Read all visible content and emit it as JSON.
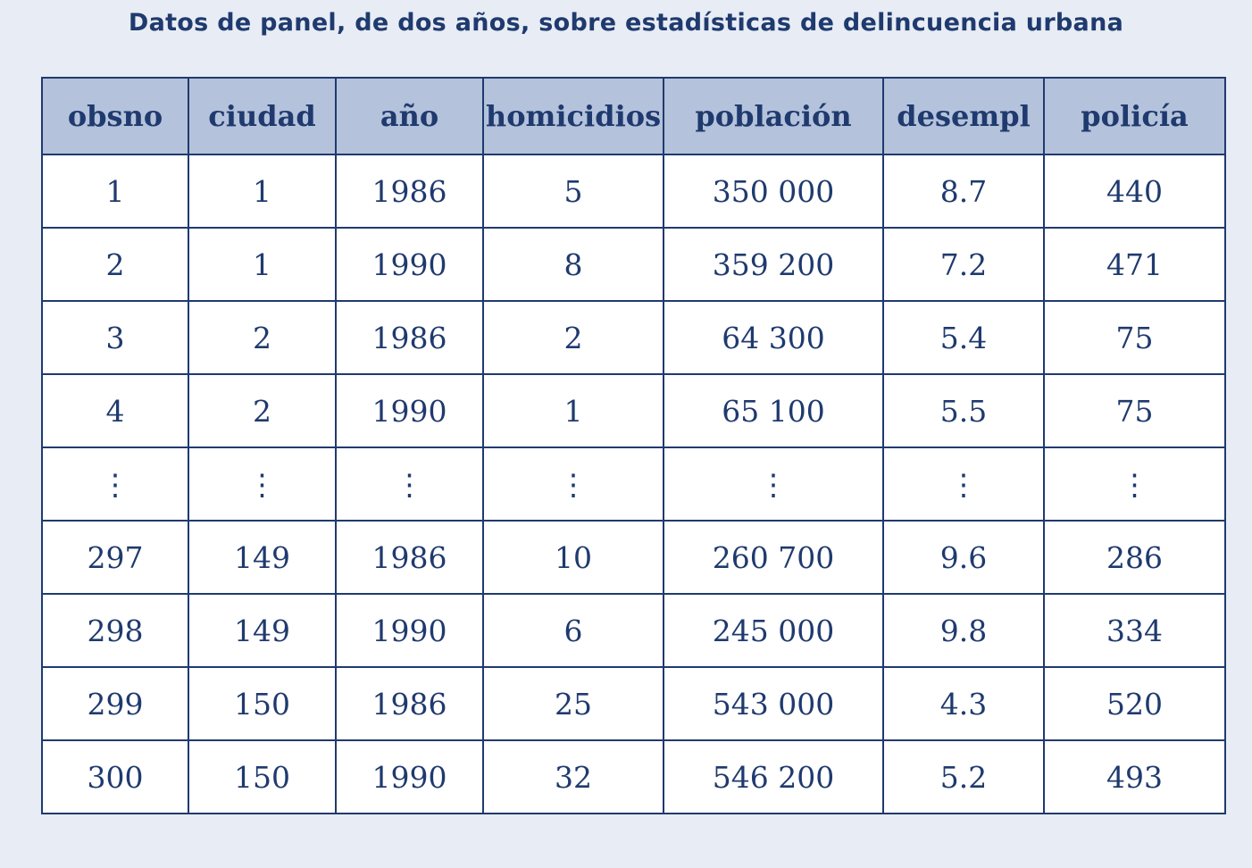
{
  "title": "Datos de panel, de dos años, sobre estadísticas de delincuencia urbana",
  "table": {
    "headers": [
      "obsno",
      "ciudad",
      "año",
      "homicidios",
      "población",
      "desempl",
      "policía"
    ],
    "rows": [
      [
        "1",
        "1",
        "1986",
        "5",
        "350 000",
        "8.7",
        "440"
      ],
      [
        "2",
        "1",
        "1990",
        "8",
        "359 200",
        "7.2",
        "471"
      ],
      [
        "3",
        "2",
        "1986",
        "2",
        "64 300",
        "5.4",
        "75"
      ],
      [
        "4",
        "2",
        "1990",
        "1",
        "65 100",
        "5.5",
        "75"
      ],
      [
        "⋮",
        "⋮",
        "⋮",
        "⋮",
        "⋮",
        "⋮",
        "⋮"
      ],
      [
        "297",
        "149",
        "1986",
        "10",
        "260 700",
        "9.6",
        "286"
      ],
      [
        "298",
        "149",
        "1990",
        "6",
        "245 000",
        "9.8",
        "334"
      ],
      [
        "299",
        "150",
        "1986",
        "25",
        "543 000",
        "4.3",
        "520"
      ],
      [
        "300",
        "150",
        "1990",
        "32",
        "546 200",
        "5.2",
        "493"
      ]
    ]
  }
}
